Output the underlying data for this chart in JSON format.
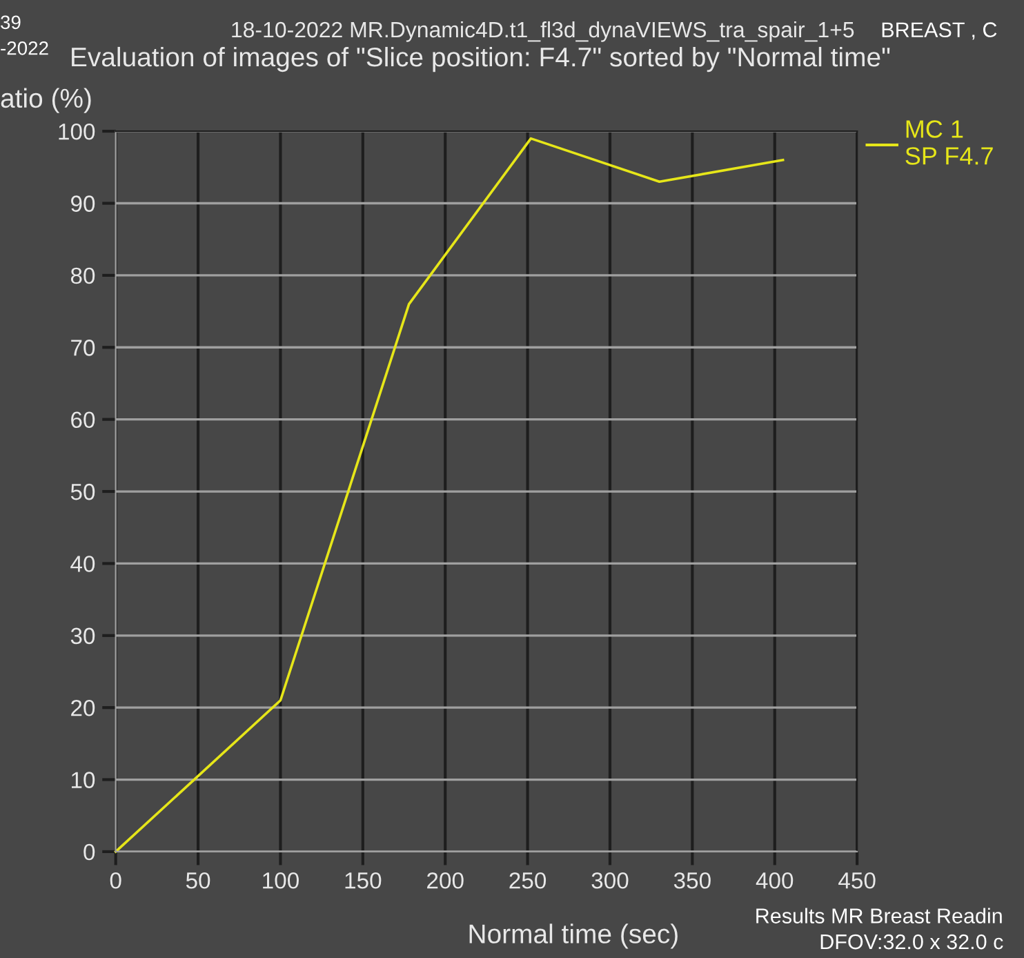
{
  "chart_data": {
    "type": "line",
    "title": "18-10-2022 MR.Dynamic4D.t1_fl3d_dynaVIEWS_tra_spair_1+5",
    "subtitle": "Evaluation of images of \"Slice position: F4.7\" sorted by \"Normal time\"",
    "xlabel": "Normal time (sec)",
    "ylabel": "atio (%)",
    "annotations": [
      "39",
      "-2022",
      "BREAST , C",
      "Results MR Breast Readin",
      "DFOV:32.0 x 32.0 c"
    ],
    "x": [
      0,
      100,
      178,
      252,
      330,
      405
    ],
    "series": [
      {
        "name": "MC 1\nSP F4.7",
        "color": "#e6e619",
        "values": [
          0,
          21,
          76,
          99,
          93,
          96
        ]
      }
    ],
    "xlim": [
      0,
      450
    ],
    "xticks": [
      0,
      50,
      100,
      150,
      200,
      250,
      300,
      350,
      400,
      450
    ],
    "ylim": [
      0,
      100
    ],
    "yticks": [
      0,
      10,
      20,
      30,
      40,
      50,
      60,
      70,
      80,
      90,
      100
    ],
    "grid": true,
    "legend": "top right",
    "marker": "none",
    "line_style": "solid"
  }
}
